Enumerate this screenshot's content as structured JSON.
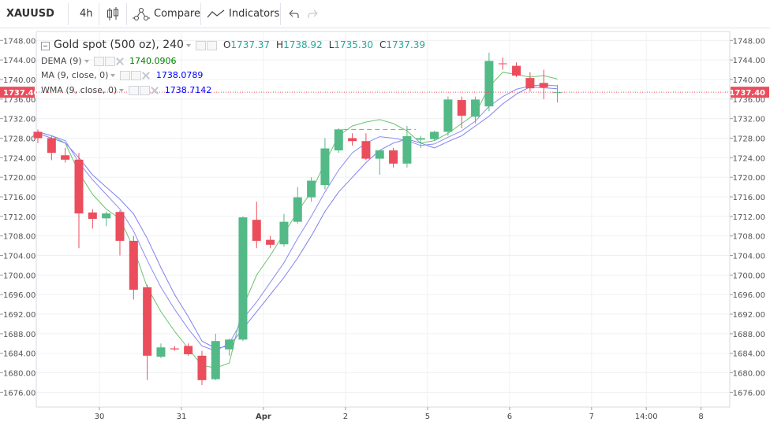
{
  "toolbar": {
    "symbol": "XAUUSD",
    "interval": "4h",
    "compare_label": "Compare",
    "indicators_label": "Indicators",
    "icons": [
      "candles-icon",
      "compare-icon",
      "indicators-icon",
      "undo-icon",
      "redo-icon"
    ]
  },
  "legend": {
    "title": "Gold spot (500 oz), 240",
    "o_label": "O",
    "o_value": "1737.37",
    "h_label": "H",
    "h_value": "1738.92",
    "l_label": "L",
    "l_value": "1735.30",
    "c_label": "C",
    "c_value": "1737.39",
    "studies": [
      {
        "name": "DEMA (9)",
        "value": "1740.0906",
        "color": "#008000"
      },
      {
        "name": "MA (9, close, 0)",
        "value": "1738.0789",
        "color": "#0000ff"
      },
      {
        "name": "WMA (9, close, 0)",
        "value": "1738.7142",
        "color": "#0000ff"
      }
    ]
  },
  "colors": {
    "up": "#53b987",
    "down": "#eb4d5c",
    "dema": "#6cc26e",
    "ma": "#7e80f0",
    "wma": "#8a8cf3",
    "price_badge": "#eb4d5c"
  },
  "chart_data": {
    "type": "candlestick",
    "title": "Gold spot (500 oz), 240",
    "ylim": [
      1673.0,
      1749.5
    ],
    "y_ticks": [
      "1748.00",
      "1744.00",
      "1740.00",
      "1736.00",
      "1732.00",
      "1728.00",
      "1724.00",
      "1720.00",
      "1716.00",
      "1712.00",
      "1708.00",
      "1704.00",
      "1700.00",
      "1696.00",
      "1692.00",
      "1688.00",
      "1684.00",
      "1680.00",
      "1676.00"
    ],
    "x_ticks": [
      {
        "label": "30",
        "i": 4.5,
        "bold": false
      },
      {
        "label": "31",
        "i": 10.5,
        "bold": false
      },
      {
        "label": "Apr",
        "i": 16.5,
        "bold": true
      },
      {
        "label": "2",
        "i": 22.5,
        "bold": false
      },
      {
        "label": "5",
        "i": 28.5,
        "bold": false
      },
      {
        "label": "6",
        "i": 34.5,
        "bold": false
      },
      {
        "label": "7",
        "i": 40.5,
        "bold": false
      },
      {
        "label": "14:00",
        "i": 44.5,
        "bold": false
      },
      {
        "label": "8",
        "i": 48.5,
        "bold": false
      }
    ],
    "last_price": "1737.40",
    "last_value": 1737.4,
    "candles": [
      {
        "o": 1729.3,
        "h": 1729.8,
        "l": 1727.0,
        "c": 1728.0
      },
      {
        "o": 1728.0,
        "h": 1728.5,
        "l": 1723.5,
        "c": 1725.0
      },
      {
        "o": 1724.5,
        "h": 1726.0,
        "l": 1723.0,
        "c": 1723.6
      },
      {
        "o": 1723.6,
        "h": 1725.0,
        "l": 1705.5,
        "c": 1712.6
      },
      {
        "o": 1712.8,
        "h": 1713.5,
        "l": 1709.5,
        "c": 1711.5
      },
      {
        "o": 1711.6,
        "h": 1713.0,
        "l": 1710.0,
        "c": 1712.6
      },
      {
        "o": 1712.9,
        "h": 1713.2,
        "l": 1704.0,
        "c": 1707.0
      },
      {
        "o": 1707.0,
        "h": 1708.0,
        "l": 1695.0,
        "c": 1697.0
      },
      {
        "o": 1697.5,
        "h": 1698.0,
        "l": 1678.5,
        "c": 1683.5
      },
      {
        "o": 1683.3,
        "h": 1686.0,
        "l": 1683.0,
        "c": 1685.2
      },
      {
        "o": 1685.0,
        "h": 1685.5,
        "l": 1684.5,
        "c": 1684.8
      },
      {
        "o": 1685.5,
        "h": 1686.0,
        "l": 1683.5,
        "c": 1683.8
      },
      {
        "o": 1683.5,
        "h": 1684.5,
        "l": 1677.5,
        "c": 1678.5
      },
      {
        "o": 1678.7,
        "h": 1688.0,
        "l": 1678.5,
        "c": 1686.5
      },
      {
        "o": 1684.8,
        "h": 1687.0,
        "l": 1683.5,
        "c": 1686.8
      },
      {
        "o": 1686.8,
        "h": 1712.0,
        "l": 1686.5,
        "c": 1711.8
      },
      {
        "o": 1711.3,
        "h": 1715.0,
        "l": 1705.5,
        "c": 1707.0
      },
      {
        "o": 1707.2,
        "h": 1708.0,
        "l": 1705.5,
        "c": 1706.2
      },
      {
        "o": 1706.3,
        "h": 1712.5,
        "l": 1705.8,
        "c": 1710.9
      },
      {
        "o": 1710.9,
        "h": 1718.0,
        "l": 1710.5,
        "c": 1715.9
      },
      {
        "o": 1715.9,
        "h": 1720.0,
        "l": 1715.0,
        "c": 1719.3
      },
      {
        "o": 1718.4,
        "h": 1728.0,
        "l": 1717.5,
        "c": 1725.9
      },
      {
        "o": 1725.5,
        "h": 1730.0,
        "l": 1725.0,
        "c": 1729.8
      },
      {
        "o": 1728.0,
        "h": 1729.0,
        "l": 1726.5,
        "c": 1727.4
      },
      {
        "o": 1727.4,
        "h": 1729.0,
        "l": 1723.5,
        "c": 1723.8
      },
      {
        "o": 1723.8,
        "h": 1725.5,
        "l": 1720.5,
        "c": 1725.5
      },
      {
        "o": 1725.5,
        "h": 1726.0,
        "l": 1722.0,
        "c": 1722.8
      },
      {
        "o": 1722.8,
        "h": 1730.5,
        "l": 1722.0,
        "c": 1728.4
      },
      {
        "o": 1727.7,
        "h": 1728.5,
        "l": 1726.0,
        "c": 1728.0
      },
      {
        "o": 1727.8,
        "h": 1729.5,
        "l": 1727.5,
        "c": 1729.3
      },
      {
        "o": 1729.3,
        "h": 1736.5,
        "l": 1728.5,
        "c": 1735.9
      },
      {
        "o": 1735.8,
        "h": 1736.5,
        "l": 1730.0,
        "c": 1732.6
      },
      {
        "o": 1732.4,
        "h": 1736.5,
        "l": 1731.0,
        "c": 1735.9
      },
      {
        "o": 1734.5,
        "h": 1745.5,
        "l": 1733.5,
        "c": 1743.8
      },
      {
        "o": 1743.3,
        "h": 1744.5,
        "l": 1742.0,
        "c": 1743.2
      },
      {
        "o": 1742.8,
        "h": 1743.5,
        "l": 1740.5,
        "c": 1740.8
      },
      {
        "o": 1740.3,
        "h": 1741.5,
        "l": 1737.5,
        "c": 1738.2
      },
      {
        "o": 1739.3,
        "h": 1742.0,
        "l": 1736.0,
        "c": 1738.4
      },
      {
        "o": 1737.37,
        "h": 1738.92,
        "l": 1735.3,
        "c": 1737.39
      }
    ],
    "series": [
      {
        "name": "DEMA (9)",
        "values": [
          1729.3,
          1728.5,
          1727.0,
          1721.0,
          1716.5,
          1713.5,
          1711.5,
          1705.5,
          1697.5,
          1692.5,
          1688.5,
          1685.0,
          1681.5,
          1681.0,
          1682.0,
          1693.5,
          1700.0,
          1704.0,
          1708.5,
          1713.0,
          1717.0,
          1723.0,
          1728.5,
          1730.5,
          1731.3,
          1731.8,
          1731.0,
          1729.5,
          1727.0,
          1727.5,
          1729.0,
          1731.0,
          1733.0,
          1738.5,
          1741.5,
          1741.0,
          1740.5,
          1740.8,
          1740.1
        ]
      },
      {
        "name": "MA (9, close, 0)",
        "values": [
          1729.0,
          1728.0,
          1727.0,
          1724.0,
          1720.5,
          1718.0,
          1715.5,
          1712.5,
          1707.5,
          1701.5,
          1696.0,
          1691.5,
          1686.5,
          1685.0,
          1685.5,
          1689.0,
          1692.5,
          1696.0,
          1699.5,
          1703.5,
          1708.0,
          1713.0,
          1717.0,
          1720.0,
          1723.0,
          1725.5,
          1727.0,
          1727.8,
          1727.0,
          1726.0,
          1727.3,
          1728.5,
          1730.5,
          1732.5,
          1735.0,
          1737.0,
          1738.5,
          1738.3,
          1738.1
        ]
      },
      {
        "name": "WMA (9, close, 0)",
        "values": [
          1729.3,
          1728.5,
          1727.5,
          1723.0,
          1719.5,
          1716.5,
          1713.5,
          1709.0,
          1703.0,
          1697.5,
          1693.0,
          1689.0,
          1685.5,
          1684.5,
          1686.0,
          1691.0,
          1694.5,
          1698.5,
          1702.5,
          1707.5,
          1712.0,
          1717.0,
          1721.5,
          1725.0,
          1727.0,
          1728.3,
          1728.0,
          1727.5,
          1726.5,
          1726.8,
          1728.2,
          1729.5,
          1731.5,
          1734.5,
          1736.5,
          1738.0,
          1738.7,
          1738.9,
          1738.7
        ]
      }
    ],
    "grid": true
  }
}
